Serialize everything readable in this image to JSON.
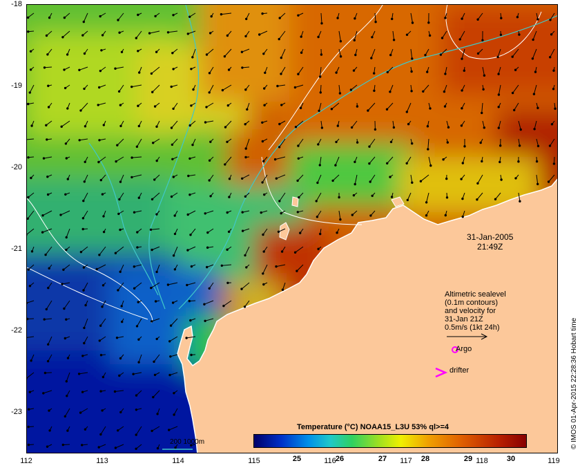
{
  "map": {
    "lat_ticks": [
      "-18",
      "-19",
      "-20",
      "-21",
      "-22",
      "-23"
    ],
    "lon_ticks": [
      "112",
      "113",
      "114",
      "115",
      "116",
      "117",
      "118",
      "119"
    ],
    "lon_range": [
      112,
      119
    ],
    "lat_range": [
      -23.5,
      -18
    ],
    "land_color": "#fcc89a",
    "contour_color": "#ffffff",
    "isobath_color": "#40c8c8"
  },
  "annotations": {
    "date": "31-Jan-2005",
    "time": "21:49Z",
    "altimetric_lines": [
      "Altimetric sealevel",
      "(0.1m contours)",
      "and velocity for",
      "31-Jan 21Z",
      "0.5m/s (1kt 24h)"
    ],
    "argo_label": "Argo",
    "drifter_label": "drifter",
    "depth_legend": "200  1000m",
    "argo_color": "#ff00ff",
    "drifter_color": "#ff00ff"
  },
  "colorbar": {
    "title": "Temperature (°C) NOAA15_L3U 53% ql>=4",
    "ticks": [
      "25",
      "26",
      "27",
      "28",
      "29",
      "30"
    ],
    "range": [
      24,
      30.6
    ]
  },
  "credit": "© IMOS 01-Apr-2015 22:28:36 Hobart time"
}
